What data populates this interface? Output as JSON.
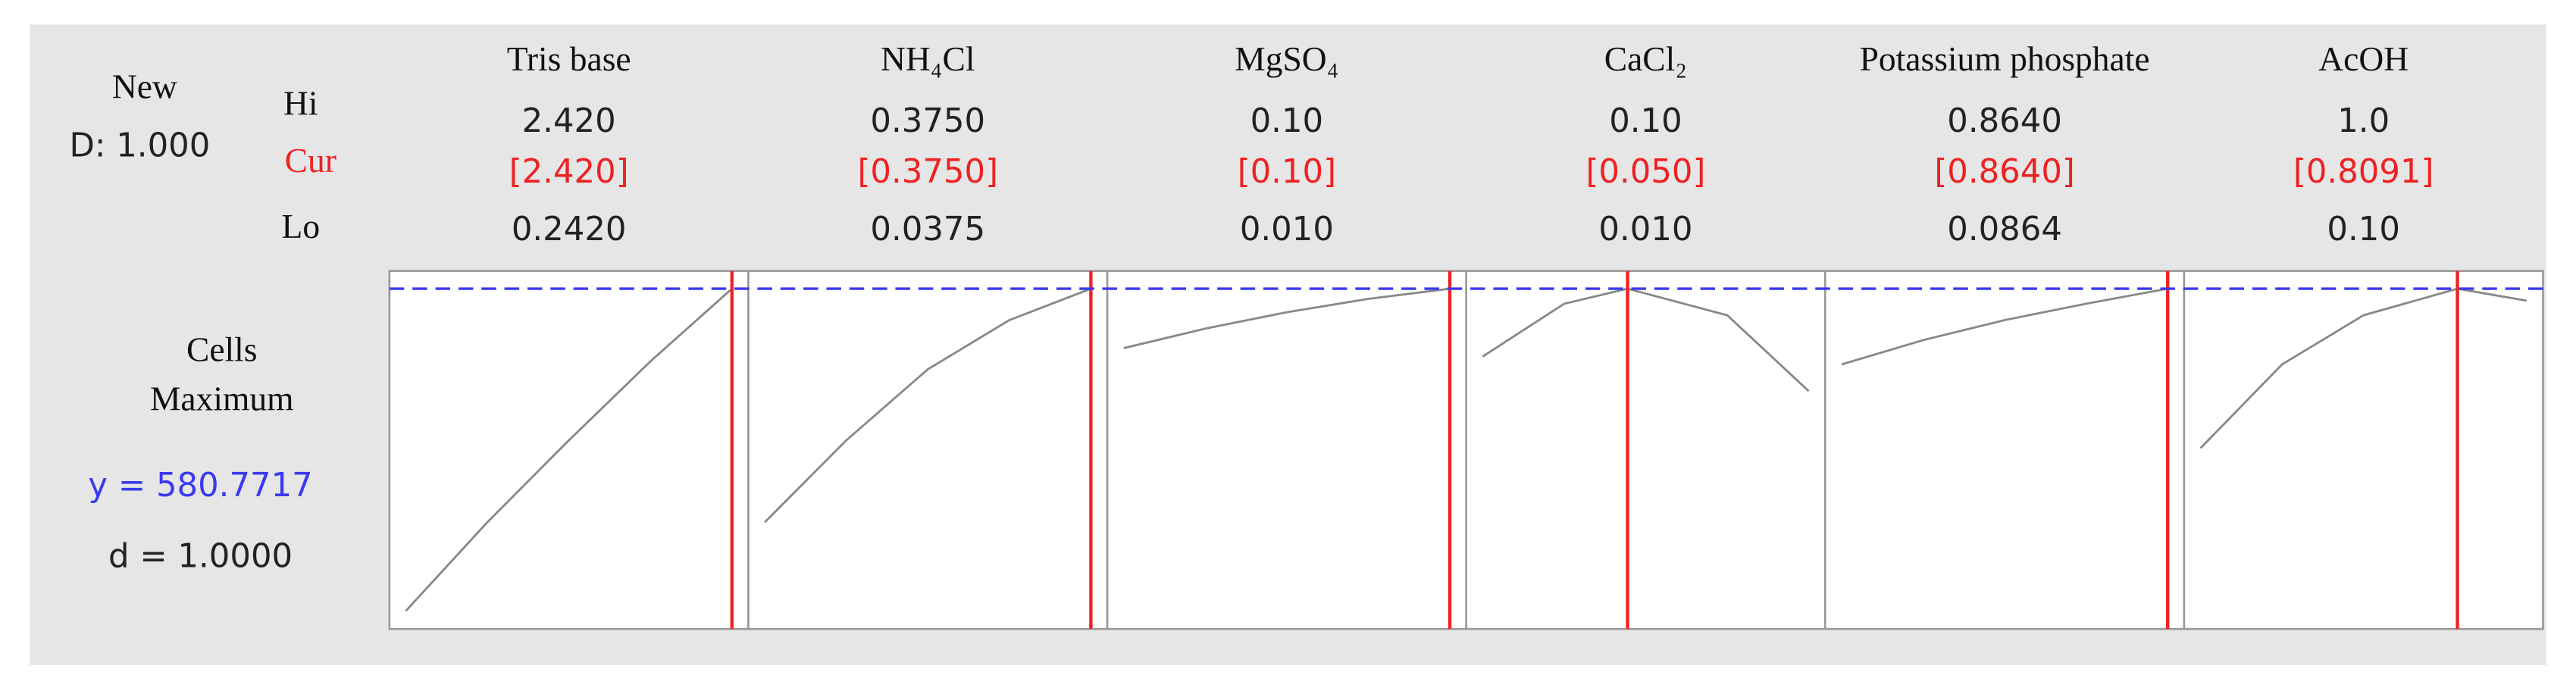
{
  "chart_data": {
    "type": "optimizer",
    "summary_title": "New",
    "composite": {
      "value": 1,
      "label": "D: 1.000"
    },
    "row_labels": {
      "hi": "Hi",
      "cur": "Cur",
      "lo": "Lo"
    },
    "response": {
      "name": "Cells",
      "goal": "Maximum"
    },
    "optimum": {
      "value": 580.7717,
      "label": "y = 580.7717"
    },
    "desirability": {
      "value": 1,
      "label": "d = 1.0000"
    },
    "ylim": [
      20,
      610
    ],
    "target_color": "#3a3af0",
    "current_color": "#ee2222",
    "curve_color": "#888888",
    "factors": [
      {
        "name": "Tris base",
        "hi": {
          "value": 2.42,
          "label": "2.420"
        },
        "cur": {
          "value": 2.42,
          "label": "[2.420]"
        },
        "lo": {
          "value": 0.242,
          "label": "0.2420"
        },
        "curve": {
          "x": [
            0.242,
            0.7865,
            1.331,
            1.8755,
            2.42
          ],
          "y": [
            49.8,
            196,
            331,
            461,
            580.8
          ]
        }
      },
      {
        "name": "NH₄Cl",
        "hi": {
          "value": 0.375,
          "label": "0.3750"
        },
        "cur": {
          "value": 0.375,
          "label": "[0.3750]"
        },
        "lo": 0.0375,
        "curve": {
          "x": [
            0.0375,
            0.12188,
            0.20625,
            0.29063,
            0.375
          ],
          "y": [
            196,
            331,
            448,
            529,
            580.8
          ]
        }
      },
      {
        "name": "MgSO₄",
        "hi": {
          "value": 0.1,
          "label": "0.10"
        },
        "cur": {
          "value": 0.1,
          "label": "[0.10]"
        },
        "lo": {
          "value": 0.01,
          "label": "0.010"
        },
        "curve": {
          "x": [
            0.01,
            0.0325,
            0.055,
            0.0775,
            0.1
          ],
          "y": [
            482.8,
            515,
            542,
            564,
            580.8
          ]
        }
      },
      {
        "name": "CaCl₂",
        "hi": {
          "value": 0.1,
          "label": "0.10"
        },
        "cur": {
          "value": 0.05,
          "label": "[0.050]"
        },
        "lo": {
          "value": 0.01,
          "label": "0.010"
        },
        "curve": {
          "x": [
            0.01,
            0.0325,
            0.05,
            0.0775,
            0.1
          ],
          "y": [
            469,
            556,
            580.8,
            537,
            412
          ]
        }
      },
      {
        "name": "Potassium phosphate",
        "hi": {
          "value": 0.864,
          "label": "0.8640"
        },
        "cur": {
          "value": 0.864,
          "label": "[0.8640]"
        },
        "lo": 0.0864,
        "curve": {
          "x": [
            0.0864,
            0.2808,
            0.4752,
            0.6696,
            0.864
          ],
          "y": [
            456,
            496,
            529,
            556,
            580.8
          ]
        }
      },
      {
        "name": "AcOH",
        "hi": {
          "value": 1,
          "label": "1.0"
        },
        "cur": {
          "value": 0.8091,
          "label": "[0.8091]"
        },
        "lo": {
          "value": 0.1,
          "label": "0.10"
        },
        "curve": {
          "x": [
            0.1,
            0.325,
            0.55,
            0.8091,
            1.0
          ],
          "y": [
            318,
            456,
            537,
            580.8,
            561
          ]
        }
      }
    ]
  }
}
